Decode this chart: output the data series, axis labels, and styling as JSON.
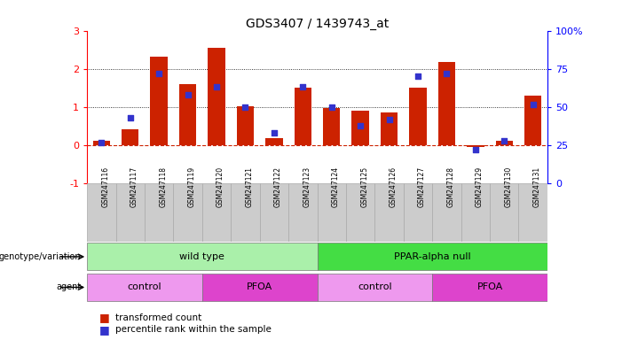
{
  "title": "GDS3407 / 1439743_at",
  "samples": [
    "GSM247116",
    "GSM247117",
    "GSM247118",
    "GSM247119",
    "GSM247120",
    "GSM247121",
    "GSM247122",
    "GSM247123",
    "GSM247124",
    "GSM247125",
    "GSM247126",
    "GSM247127",
    "GSM247128",
    "GSM247129",
    "GSM247130",
    "GSM247131"
  ],
  "red_bars": [
    0.13,
    0.43,
    2.32,
    1.6,
    2.55,
    1.02,
    0.2,
    1.5,
    0.97,
    0.9,
    0.85,
    1.5,
    2.18,
    -0.05,
    0.12,
    1.3
  ],
  "blue_dots_pct": [
    27,
    43,
    72,
    58,
    63,
    50,
    33,
    63,
    50,
    38,
    42,
    70,
    72,
    22,
    28,
    52
  ],
  "ylim": [
    -1,
    3
  ],
  "yticks": [
    -1,
    0,
    1,
    2,
    3
  ],
  "right_yticks": [
    0,
    25,
    50,
    75,
    100
  ],
  "right_ytick_labels": [
    "0",
    "25",
    "50",
    "75",
    "100%"
  ],
  "bar_color": "#cc2200",
  "dot_color": "#3333cc",
  "zero_line_color": "#cc2200",
  "genotype_wt_label": "wild type",
  "genotype_null_label": "PPAR-alpha null",
  "agent_control1_label": "control",
  "agent_pfoa1_label": "PFOA",
  "agent_control2_label": "control",
  "agent_pfoa2_label": "PFOA",
  "wt_color": "#aaf0aa",
  "null_color": "#44dd44",
  "agent_control_color": "#ee99ee",
  "agent_pfoa_color": "#dd44cc",
  "genotype_label": "genotype/variation",
  "agent_label": "agent",
  "legend_red": "transformed count",
  "legend_blue": "percentile rank within the sample",
  "tick_bg_color": "#cccccc"
}
